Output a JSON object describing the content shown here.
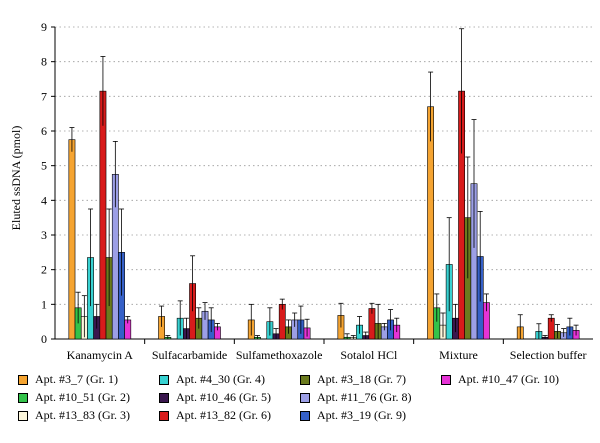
{
  "chart_data": {
    "type": "bar",
    "ylabel": "Eluted ssDNA (pmol)",
    "xlabel": "",
    "ylim": [
      0,
      9
    ],
    "yticks": [
      "0",
      "1",
      "2",
      "3",
      "4",
      "5",
      "6",
      "7",
      "8",
      "9"
    ],
    "grid": "horizontal dotted",
    "legend_position": "bottom",
    "categories": [
      "Kanamycin A",
      "Sulfacarbamide",
      "Sulfamethoxazole",
      "Sotalol HCl",
      "Mixture",
      "Selection buffer"
    ],
    "series": [
      {
        "name": "Apt. #3_7 (Gr. 1)",
        "color": "#f5a431",
        "values": [
          5.75,
          0.65,
          0.55,
          0.68,
          6.7,
          0.35
        ],
        "errors": [
          0.35,
          0.3,
          0.45,
          0.35,
          1.0,
          0.35
        ]
      },
      {
        "name": "Apt. #10_51 (Gr. 2)",
        "color": "#33c24a",
        "values": [
          0.9,
          0.05,
          0.05,
          0.05,
          0.9,
          0.0
        ],
        "errors": [
          0.45,
          0.05,
          0.05,
          0.1,
          0.4,
          0.0
        ]
      },
      {
        "name": "Apt. #13_83 (Gr. 3)",
        "color": "#fdf7dc",
        "values": [
          0.65,
          0.0,
          0.0,
          0.05,
          0.4,
          0.0
        ],
        "errors": [
          0.6,
          0.0,
          0.0,
          0.05,
          0.35,
          0.0
        ]
      },
      {
        "name": "Apt. #4_30 (Gr. 4)",
        "color": "#38d2d2",
        "values": [
          2.35,
          0.6,
          0.5,
          0.4,
          2.15,
          0.22
        ],
        "errors": [
          1.4,
          0.5,
          0.4,
          0.25,
          1.35,
          0.22
        ]
      },
      {
        "name": "Apt. #10_46 (Gr. 5)",
        "color": "#3a174e",
        "values": [
          0.65,
          0.3,
          0.15,
          0.1,
          0.6,
          0.05
        ],
        "errors": [
          0.35,
          0.3,
          0.15,
          0.1,
          0.4,
          0.05
        ]
      },
      {
        "name": "Apt. #13_82 (Gr. 6)",
        "color": "#d81b1b",
        "values": [
          7.15,
          1.6,
          1.0,
          0.88,
          7.15,
          0.6
        ],
        "errors": [
          1.0,
          0.8,
          0.15,
          0.15,
          1.8,
          0.1
        ]
      },
      {
        "name": "Apt. #3_18 (Gr. 7)",
        "color": "#6b7b1e",
        "values": [
          2.35,
          0.6,
          0.35,
          0.45,
          3.5,
          0.22
        ],
        "errors": [
          1.4,
          0.3,
          0.2,
          0.55,
          1.75,
          0.2
        ]
      },
      {
        "name": "Apt. #11_76 (Gr. 8)",
        "color": "#9c9fe6",
        "values": [
          4.75,
          0.8,
          0.55,
          0.35,
          4.48,
          0.18
        ],
        "errors": [
          0.95,
          0.25,
          0.2,
          0.1,
          1.85,
          0.12
        ]
      },
      {
        "name": "Apt. #3_19 (Gr. 9)",
        "color": "#3560c8",
        "values": [
          2.5,
          0.55,
          0.55,
          0.55,
          2.38,
          0.35
        ],
        "errors": [
          1.25,
          0.35,
          0.4,
          0.3,
          1.3,
          0.25
        ]
      },
      {
        "name": "Apt. #10_47 (Gr. 10)",
        "color": "#e633d6",
        "values": [
          0.55,
          0.35,
          0.32,
          0.4,
          1.05,
          0.25
        ],
        "errors": [
          0.1,
          0.1,
          0.25,
          0.2,
          0.25,
          0.15
        ]
      }
    ]
  }
}
